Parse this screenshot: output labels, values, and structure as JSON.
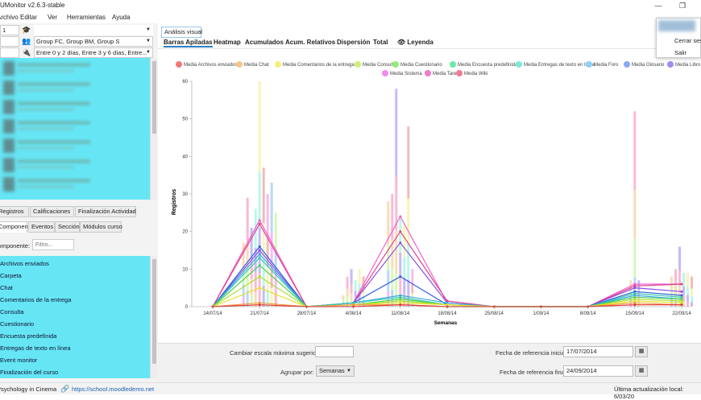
{
  "window": {
    "title": "UMonitor v2.6.3-stable",
    "minimize_glyph": "—",
    "restore_glyph": "❐"
  },
  "menu": [
    "Archivo",
    "Editar",
    "Ver",
    "Herramientas",
    "Ayuda"
  ],
  "left": {
    "role_combo": "1",
    "group_combo": "Group FC, Group BM, Group S",
    "activity_combo": "Entre 0 y 2 días, Entre 3 y 6 días, Entre...",
    "tabs_top": [
      "Registros",
      "Calificaciones",
      "Finalización Actividad"
    ],
    "tabs_sub": [
      "Componentes",
      "Eventos",
      "Sección",
      "Módulos curso"
    ],
    "filter_label": "Componente:",
    "filter_placeholder": "Filtro...",
    "components": [
      "Archivos enviados",
      "Carpeta",
      "Chat",
      "Comentarios de la entrega",
      "Consulta",
      "Cuestionario",
      "Encuesta predefinida",
      "Entregas de texto en línea",
      "Event monitor",
      "Finalización del curso"
    ]
  },
  "right": {
    "outer_tab": "Análisis visual",
    "view_tabs": [
      "Barras Apiladas",
      "Heatmap",
      "Acumulados",
      "Acum. Relativos",
      "Dispersión",
      "Total",
      "Leyenda"
    ],
    "active_view_tab": "Barras Apiladas"
  },
  "popup": {
    "items": [
      "Cerrar sesión",
      "Salir"
    ]
  },
  "controls": {
    "scale_label": "Cambiar escala máxima sugerida:",
    "scale_value": "",
    "group_label": "Agrupar por:",
    "group_value": "Semanas",
    "start_label": "Fecha de referencia inicial:",
    "start_value": "17/07/2014",
    "end_label": "Fecha de referencia final:",
    "end_value": "24/09/2014"
  },
  "status": {
    "course": "Psychology in Cinema",
    "url": "https://school.moodledemo.net",
    "update": "Última actualización local: 6/03/20"
  },
  "chart_data": {
    "type": "bar",
    "ylabel": "Registros",
    "xlabel": "Semanas",
    "ylim": [
      0,
      60
    ],
    "yticks": [
      0,
      10,
      20,
      30,
      40,
      50,
      60
    ],
    "categories": [
      "14/07/14",
      "21/07/14",
      "28/07/14",
      "4/08/14",
      "11/08/14",
      "18/08/14",
      "25/08/14",
      "1/09/14",
      "8/09/14",
      "15/09/14",
      "22/09/14"
    ],
    "legend": [
      {
        "name": "Media Archivos enviados",
        "color": "#f07878"
      },
      {
        "name": "Media Chat",
        "color": "#f7c58a"
      },
      {
        "name": "Media Comentarios de la entrega",
        "color": "#f5f07a"
      },
      {
        "name": "Media Consulta",
        "color": "#cdf07a"
      },
      {
        "name": "Media Cuestionario",
        "color": "#94ec74"
      },
      {
        "name": "Media Encuesta predefinida",
        "color": "#6ee8a6"
      },
      {
        "name": "Media Entregas de texto en línea",
        "color": "#7ce8d8"
      },
      {
        "name": "Media Foro",
        "color": "#8cd0f5"
      },
      {
        "name": "Media Glosario",
        "color": "#8aa8f0"
      },
      {
        "name": "Media Libro",
        "color": "#a48af0"
      },
      {
        "name": "Media Sistema",
        "color": "#f08af0"
      },
      {
        "name": "Media Tarea",
        "color": "#f07acb"
      },
      {
        "name": "Media Wiki",
        "color": "#f07a96"
      }
    ],
    "bar_groups": [
      {
        "category": "21/07/14",
        "bars": [
          17,
          29,
          21,
          26,
          60,
          37,
          30,
          33,
          25
        ]
      },
      {
        "category": "4/08/14",
        "bars": [
          3,
          8,
          10,
          7,
          10,
          8
        ]
      },
      {
        "category": "11/08/14",
        "bars": [
          28,
          30,
          58,
          24,
          22,
          48,
          10
        ]
      },
      {
        "category": "15/09/14",
        "bars": [
          7,
          52,
          7
        ]
      },
      {
        "category": "22/09/14",
        "bars": [
          8,
          10,
          16,
          9,
          9,
          8
        ]
      }
    ],
    "series": [
      {
        "name": "Media Sistema",
        "color": "#f05fd2",
        "values": [
          0,
          23,
          0,
          1,
          24,
          1,
          0,
          0,
          0,
          6,
          6
        ]
      },
      {
        "name": "Media Tarea",
        "color": "#e0408c",
        "values": [
          0,
          22,
          0,
          1,
          20,
          1.5,
          0,
          0,
          0,
          5.5,
          6
        ]
      },
      {
        "name": "Media Libro",
        "color": "#8c4ce8",
        "values": [
          0,
          15,
          0,
          1,
          17,
          1,
          0,
          0,
          0,
          5,
          4
        ]
      },
      {
        "name": "Media Glosario",
        "color": "#3060e0",
        "values": [
          0,
          16,
          0,
          1,
          8,
          0.5,
          0,
          0,
          0,
          4,
          3
        ]
      },
      {
        "name": "Media Foro",
        "color": "#3aa8e0",
        "values": [
          0,
          14,
          0,
          1,
          3,
          1,
          0,
          0,
          0,
          3,
          2
        ]
      },
      {
        "name": "Media Entregas de texto en línea",
        "color": "#30c8b0",
        "values": [
          0,
          13,
          0,
          1,
          2.5,
          0.5,
          0,
          0,
          0,
          3.5,
          2.5
        ]
      },
      {
        "name": "Media Cuestionario",
        "color": "#50d050",
        "values": [
          0,
          11,
          0,
          0.5,
          2,
          0.5,
          0,
          0,
          0,
          2.5,
          2
        ]
      },
      {
        "name": "Media Consulta",
        "color": "#a8e030",
        "values": [
          0,
          8,
          0,
          0.5,
          1.5,
          0.5,
          0,
          0,
          0,
          2,
          1.5
        ]
      },
      {
        "name": "Media Comentarios de la entrega",
        "color": "#e8e030",
        "values": [
          0,
          5,
          0,
          0.5,
          1,
          0.5,
          0,
          0,
          0,
          1.5,
          1
        ]
      },
      {
        "name": "Media Chat",
        "color": "#f0a040",
        "values": [
          0,
          1,
          0,
          0.5,
          0.5,
          0,
          0,
          0,
          0,
          1,
          0.5
        ]
      },
      {
        "name": "Media Archivos enviados",
        "color": "#e83030",
        "values": [
          0,
          0.5,
          0,
          0,
          0.5,
          0,
          0,
          0,
          0,
          0.5,
          0.5
        ]
      }
    ]
  }
}
